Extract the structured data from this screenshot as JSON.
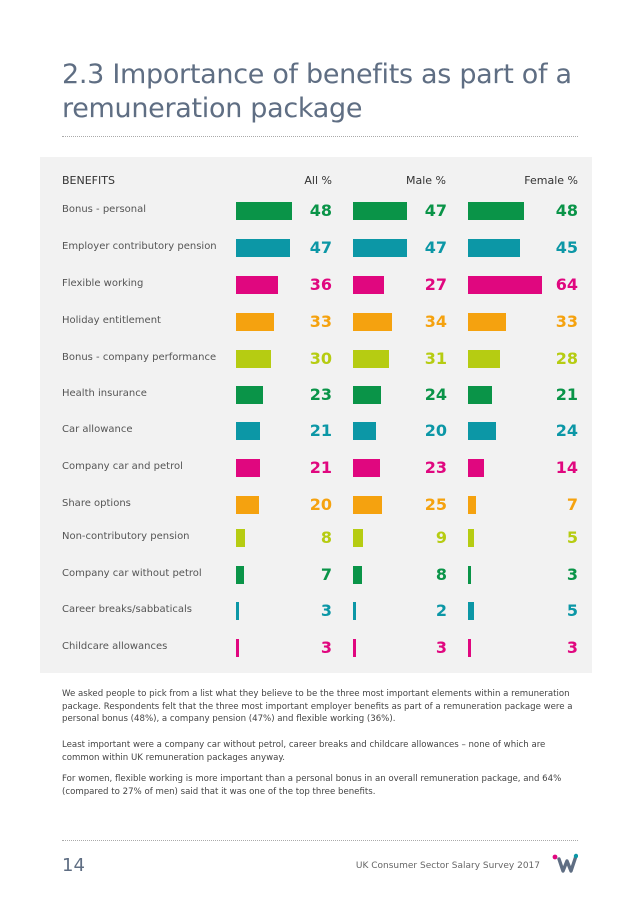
{
  "page": {
    "title_line1": "2.3 Importance of benefits as part of a",
    "title_line2": "remuneration package",
    "page_number": "14",
    "footer_text": "UK Consumer Sector Salary Survey 2017"
  },
  "table": {
    "header_benefits": "BENEFITS",
    "header_all": "All %",
    "header_male": "Male %",
    "header_female": "Female %"
  },
  "colors": {
    "green": "#0a9448",
    "teal": "#0c97a6",
    "magenta": "#e0077f",
    "orange": "#f5a20f",
    "lime": "#b6cc12"
  },
  "chart_data": {
    "type": "bar",
    "categories": [
      "Bonus - personal",
      "Employer contributory pension",
      "Flexible working",
      "Holiday entitlement",
      "Bonus - company performance",
      "Health insurance",
      "Car allowance",
      "Company car and petrol",
      "Share options",
      "Non-contributory pension",
      "Company car without petrol",
      "Career breaks/sabbaticals",
      "Childcare allowances"
    ],
    "series": [
      {
        "name": "All %",
        "values": [
          48,
          47,
          36,
          33,
          30,
          23,
          21,
          21,
          20,
          8,
          7,
          3,
          3
        ]
      },
      {
        "name": "Male %",
        "values": [
          47,
          47,
          27,
          34,
          31,
          24,
          20,
          23,
          25,
          9,
          8,
          2,
          3
        ]
      },
      {
        "name": "Female %",
        "values": [
          48,
          45,
          64,
          33,
          28,
          21,
          24,
          14,
          7,
          5,
          3,
          5,
          3
        ]
      }
    ],
    "row_colors": [
      "#0a9448",
      "#0c97a6",
      "#e0077f",
      "#f5a20f",
      "#b6cc12",
      "#0a9448",
      "#0c97a6",
      "#e0077f",
      "#f5a20f",
      "#b6cc12",
      "#0a9448",
      "#0c97a6",
      "#e0077f"
    ],
    "xlim": [
      0,
      64
    ]
  },
  "paragraphs": [
    "We asked people to pick from a list what they believe to be the three most important elements within a remuneration package. Respondents felt that the three most important employer benefits as part of a remuneration package were a personal bonus (48%), a company pension (47%) and flexible working (36%).",
    "Least important were a company car without petrol, career breaks and childcare allowances – none of which are common within UK remuneration packages anyway.",
    "For women, flexible working is more important than a personal bonus in an overall remuneration package, and 64% (compared to 27% of men) said that it was one of the top three benefits."
  ]
}
